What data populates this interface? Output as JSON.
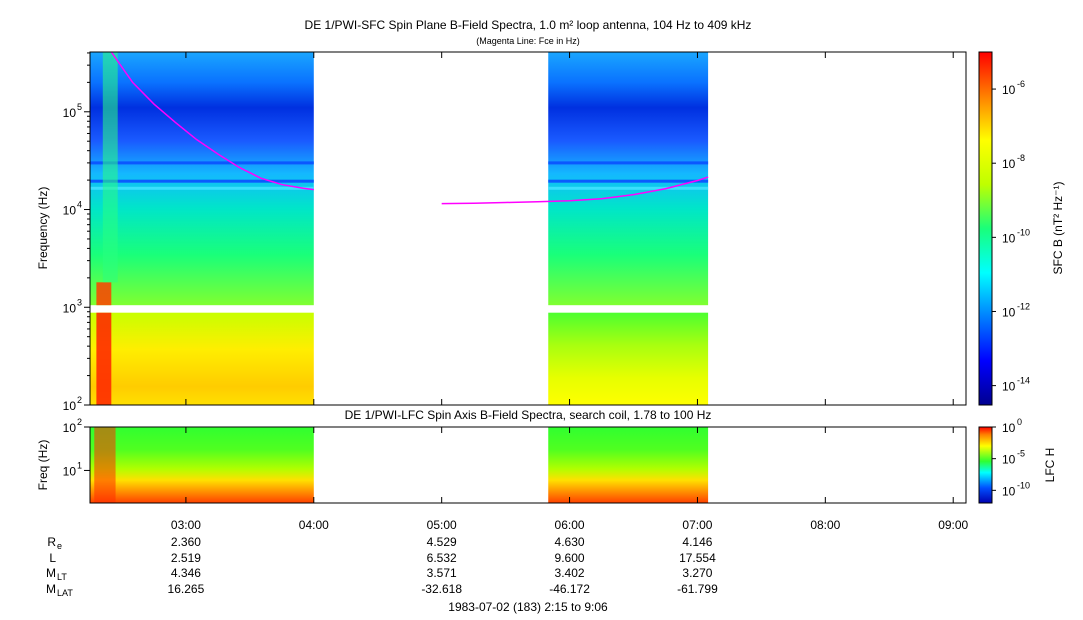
{
  "chart_data": [
    {
      "type": "heatmap",
      "title": "DE 1/PWI-SFC  Spin Plane B-Field Spectra, 1.0 m² loop antenna, 104 Hz to 409 kHz",
      "subtitle": "(Magenta Line: Fce in Hz)",
      "ylabel": "Frequency (Hz)",
      "y_scale": "log",
      "ylim": [
        100,
        409000
      ],
      "y_ticks": [
        {
          "value": 100,
          "label": "10",
          "exp": "2"
        },
        {
          "value": 1000,
          "label": "10",
          "exp": "3"
        },
        {
          "value": 10000,
          "label": "10",
          "exp": "4"
        },
        {
          "value": 100000,
          "label": "10",
          "exp": "5"
        }
      ],
      "colorbar": {
        "label": "SFC B (nT² Hz⁻¹)",
        "scale": "log",
        "range": [
          3e-15,
          1e-05
        ],
        "ticks": [
          {
            "value": 1e-06,
            "label": "10",
            "exp": "-6"
          },
          {
            "value": 1e-08,
            "label": "10",
            "exp": "-8"
          },
          {
            "value": 1e-10,
            "label": "10",
            "exp": "-10"
          },
          {
            "value": 1e-12,
            "label": "10",
            "exp": "-12"
          },
          {
            "value": 1e-14,
            "label": "10",
            "exp": "-14"
          }
        ]
      },
      "data_intervals": [
        {
          "start": "02:15",
          "end": "04:00"
        },
        {
          "start": "05:50",
          "end": "07:05"
        }
      ],
      "low_band_gap_hz": [
        880,
        1050
      ],
      "series": [
        {
          "name": "Fce",
          "color": "#ff00ff",
          "x": [
            "02:25",
            "02:35",
            "02:45",
            "02:55",
            "03:05",
            "03:15",
            "03:25",
            "03:35",
            "03:45",
            "03:55",
            "04:00"
          ],
          "y": [
            420000,
            200000,
            120000,
            78000,
            52000,
            37000,
            27000,
            21000,
            18000,
            16500,
            16000
          ]
        },
        {
          "name": "Fce",
          "color": "#ff00ff",
          "x": [
            "05:00",
            "05:15",
            "05:30",
            "05:45",
            "06:00",
            "06:15",
            "06:30",
            "06:45",
            "07:00",
            "07:05"
          ],
          "y": [
            11500,
            11600,
            11800,
            12000,
            12300,
            12900,
            14200,
            16300,
            19800,
            21500
          ]
        }
      ],
      "colors": {
        "magenta": "#ff00ff",
        "background_band": "#1060ff"
      }
    },
    {
      "type": "heatmap",
      "title": "DE 1/PWI-LFC  Spin Axis B-Field Spectra, search coil, 1.78 to 100 Hz",
      "ylabel": "Freq (Hz)",
      "y_scale": "log",
      "ylim": [
        1.78,
        100
      ],
      "y_ticks": [
        {
          "value": 10,
          "label": "10",
          "exp": "1"
        },
        {
          "value": 100,
          "label": "10",
          "exp": "2"
        }
      ],
      "colorbar": {
        "label": "LFC H",
        "scale": "log",
        "range": [
          1e-12,
          1
        ],
        "ticks": [
          {
            "value": 1,
            "label": "10",
            "exp": "0"
          },
          {
            "value": 1e-05,
            "label": "10",
            "exp": "-5"
          },
          {
            "value": 1e-10,
            "label": "10",
            "exp": "-10"
          }
        ]
      },
      "data_intervals": [
        {
          "start": "02:15",
          "end": "04:00"
        },
        {
          "start": "05:50",
          "end": "07:05"
        }
      ]
    }
  ],
  "x_axis": {
    "range": [
      "02:15",
      "09:06"
    ],
    "ticks": [
      "03:00",
      "04:00",
      "05:00",
      "06:00",
      "07:00",
      "08:00",
      "09:00"
    ]
  },
  "ephemeris": {
    "rows": [
      {
        "label": "R",
        "sub": "e",
        "values": [
          "2.360",
          "",
          "4.529",
          "4.630",
          "4.146",
          "",
          ""
        ]
      },
      {
        "label": "L",
        "sub": "",
        "values": [
          "2.519",
          "",
          "6.532",
          "9.600",
          "17.554",
          "",
          ""
        ]
      },
      {
        "label": "M",
        "sub": "LT",
        "values": [
          "4.346",
          "",
          "3.571",
          "3.402",
          "3.270",
          "",
          ""
        ]
      },
      {
        "label": "M",
        "sub": "LAT",
        "values": [
          "16.265",
          "",
          "-32.618",
          "-46.172",
          "-61.799",
          "",
          ""
        ]
      }
    ]
  },
  "footer": "1983-07-02 (183) 2:15 to 9:06"
}
